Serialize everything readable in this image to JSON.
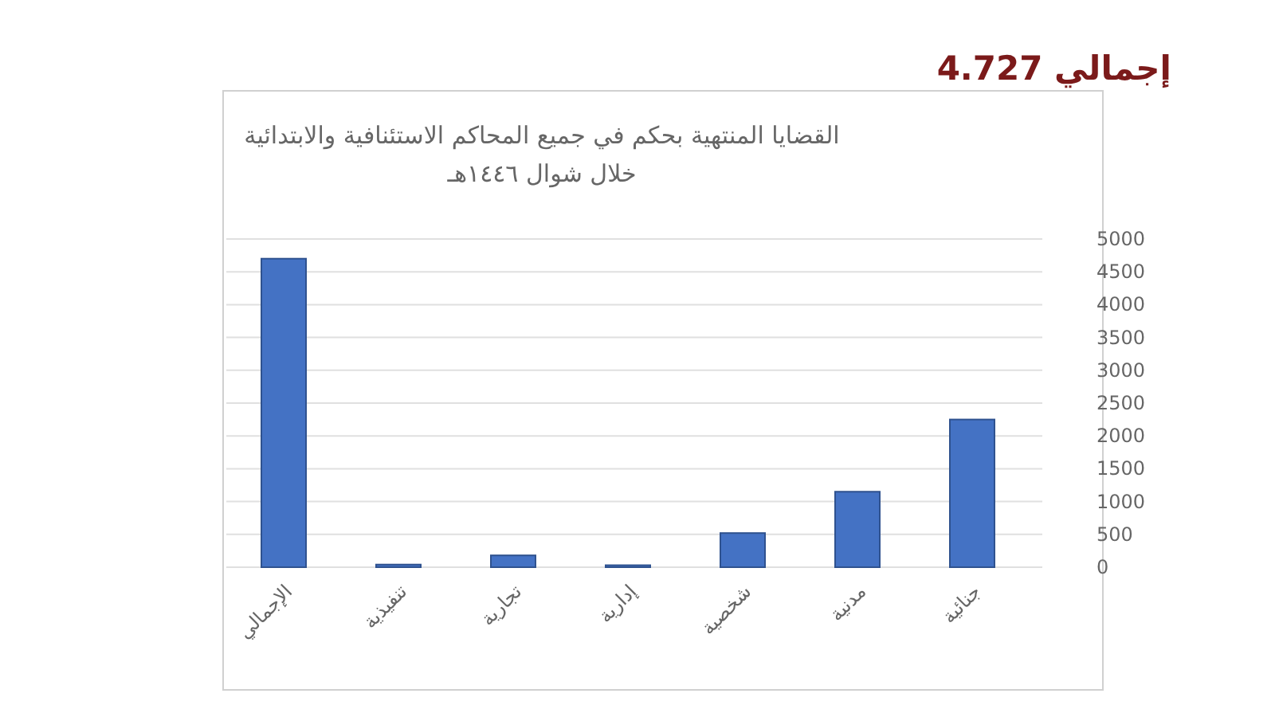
{
  "chart_data": {
    "type": "bar",
    "title": "القضايا المنتهية بحكم في جميع المحاكم الاستئنافية والابتدائية",
    "subtitle": "خلال شوال ١٤٤٦هـ",
    "categories": [
      "الإجمالي",
      "تنفيذية",
      "تجارية",
      "إدارية",
      "شخصية",
      "مدنية",
      "جنائية"
    ],
    "values": [
      4700,
      40,
      180,
      30,
      520,
      1150,
      2250
    ],
    "color": "#4472c4",
    "ylim": [
      0,
      5000
    ],
    "yticks": [
      0,
      500,
      1000,
      1500,
      2000,
      2500,
      3000,
      3500,
      4000,
      4500,
      5000
    ],
    "grid": true,
    "annotations": [
      "إجمالي 4.727"
    ]
  }
}
